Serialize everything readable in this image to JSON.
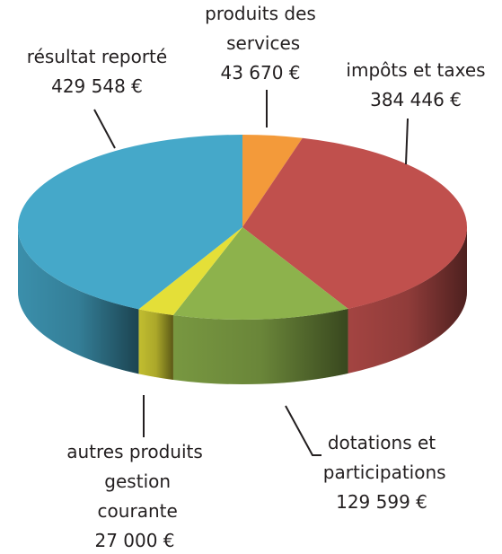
{
  "chart_data": {
    "type": "pie",
    "categories": [
      "produits des services",
      "impôts et taxes",
      "dotations et participations",
      "autres produits gestion courante",
      "résultat reporté"
    ],
    "values": [
      43670,
      384446,
      129599,
      27000,
      429548
    ],
    "value_labels": [
      "43 670 €",
      "384 446 €",
      "129 599 €",
      "27 000 €",
      "429 548 €"
    ],
    "colors": [
      "#f39a3a",
      "#c0504d",
      "#8db24c",
      "#e4df38",
      "#45a8c9"
    ]
  }
}
